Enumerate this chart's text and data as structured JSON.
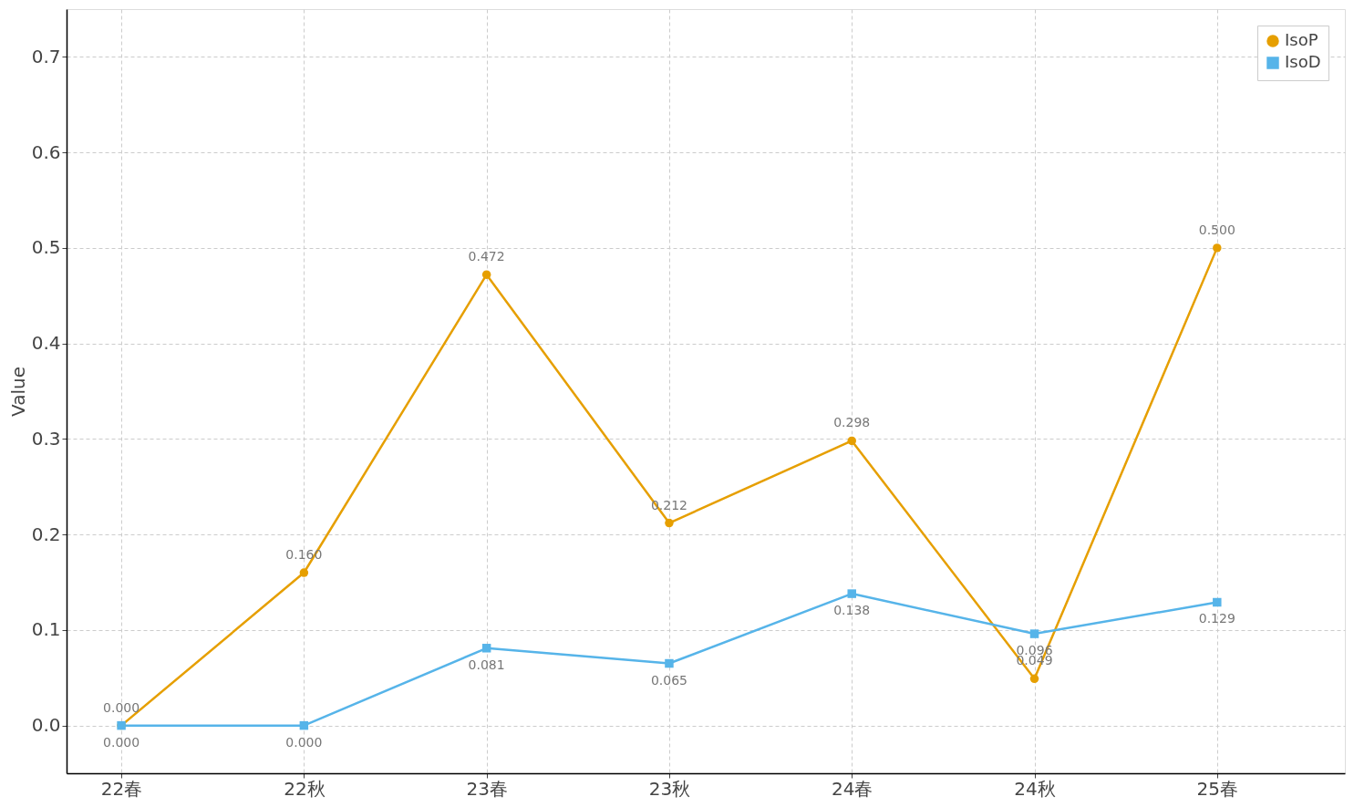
{
  "chart_data": {
    "type": "line",
    "ylabel": "Value",
    "categories": [
      "22春",
      "22秋",
      "23春",
      "23秋",
      "24春",
      "24秋",
      "25春"
    ],
    "series": [
      {
        "name": "IsoP",
        "color": "#e69f00",
        "marker": "circle",
        "values": [
          0.0,
          0.16,
          0.472,
          0.212,
          0.298,
          0.049,
          0.5
        ],
        "value_labels": [
          "0.000",
          "0.160",
          "0.472",
          "0.212",
          "0.298",
          "0.049",
          "0.500"
        ]
      },
      {
        "name": "IsoD",
        "color": "#56b4e9",
        "marker": "square",
        "values": [
          0.0,
          0.0,
          0.081,
          0.065,
          0.138,
          0.096,
          0.129
        ],
        "value_labels": [
          "0.000",
          "0.000",
          "0.081",
          "0.065",
          "0.138",
          "0.096",
          "0.129"
        ]
      }
    ],
    "ylim": [
      -0.05,
      0.75
    ],
    "yticks": [
      {
        "value": 0,
        "label": "0.0"
      },
      0.1,
      0.2,
      0.3,
      0.4,
      0.5,
      0.6,
      0.7
    ],
    "grid": true,
    "legend": "top right",
    "line_style": "solid"
  }
}
